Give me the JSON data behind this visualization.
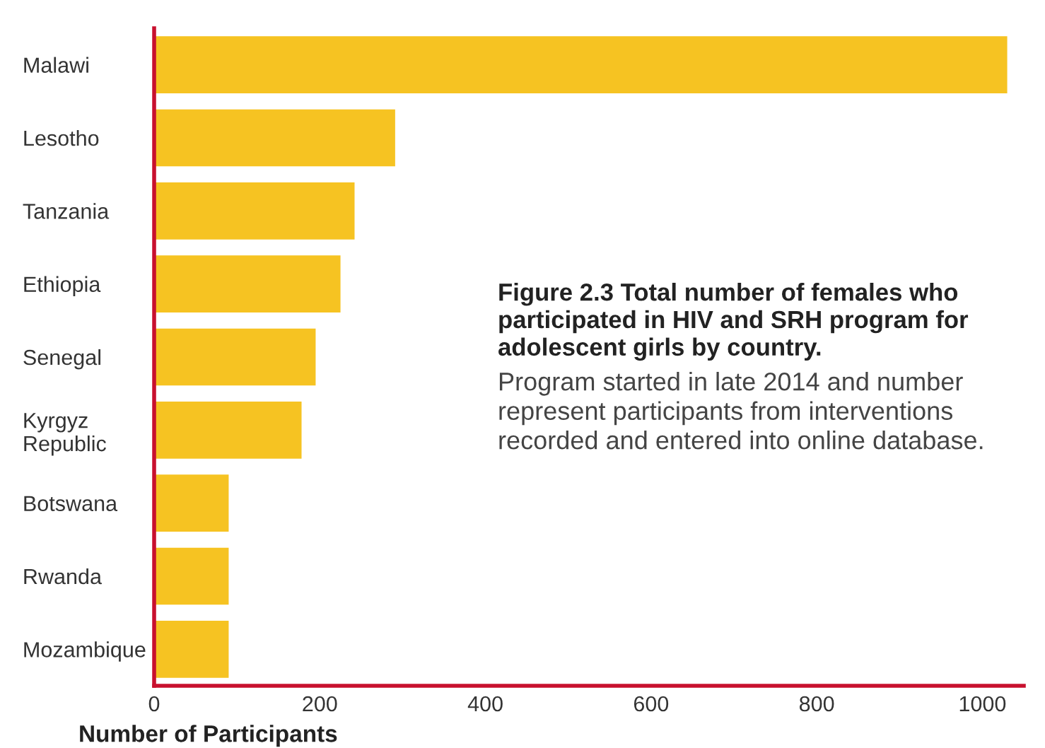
{
  "chart_data": {
    "type": "bar",
    "orientation": "horizontal",
    "title": "Figure 2.3 Total number of females who participated in HIV and SRH program for adolescent girls by country.",
    "annotations": [
      "Program started in late 2014 and number represent participants from interventions recorded and entered into online database."
    ],
    "xlabel": "Number of Participants",
    "categories": [
      "Malawi",
      "Lesotho",
      "Tanzania",
      "Ethiopia",
      "Senegal",
      "Kyrgyz\nRepublic",
      "Botswana",
      "Rwanda",
      "Mozambique"
    ],
    "values": [
      1030,
      291,
      242,
      225,
      195,
      178,
      90,
      90,
      90
    ],
    "color": "#f6c322",
    "xlim": [
      0,
      1050
    ],
    "xticks": [
      0,
      200,
      400,
      600,
      800,
      1000
    ],
    "grid": false,
    "legend": false
  }
}
